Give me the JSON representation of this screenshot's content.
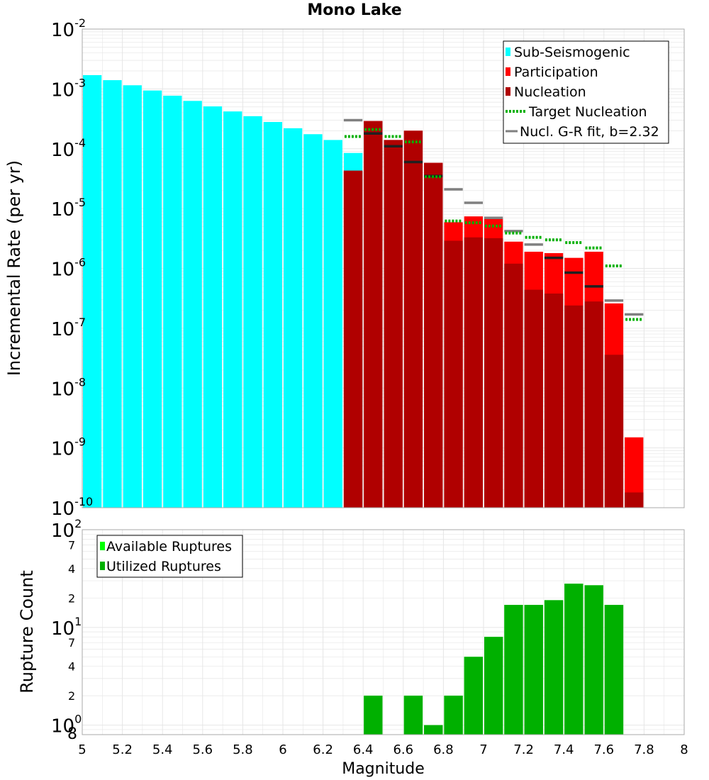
{
  "chart_title": "Mono Lake",
  "xlabel": "Magnitude",
  "colors": {
    "sub_seismogenic": "#00ffff",
    "participation": "#ff0000",
    "nucleation": "#b00000",
    "target_nucleation": "#00b000",
    "gr_fit": "#808080",
    "available": "#00ff00",
    "utilized": "#00b000",
    "grid": "#e6e6e6",
    "frame": "#aaaaaa"
  },
  "chart_data": [
    {
      "type": "bar",
      "panel": "top",
      "ylabel": "Incremental Rate (per yr)",
      "yscale": "log",
      "xlim": [
        5,
        8
      ],
      "ylim": [
        1e-10,
        0.01
      ],
      "xticks": [
        "5",
        "5.2",
        "5.4",
        "5.6",
        "5.8",
        "6",
        "6.2",
        "6.4",
        "6.6",
        "6.8",
        "7",
        "7.2",
        "7.4",
        "7.6",
        "7.8",
        "8"
      ],
      "ytick_labels": [
        {
          "base": "10",
          "exp": "-2",
          "value": 0.01
        },
        {
          "base": "10",
          "exp": "-3",
          "value": 0.001
        },
        {
          "base": "10",
          "exp": "-4",
          "value": 0.0001
        },
        {
          "base": "10",
          "exp": "-5",
          "value": 1e-05
        },
        {
          "base": "10",
          "exp": "-6",
          "value": 1e-06
        },
        {
          "base": "10",
          "exp": "-7",
          "value": 1e-07
        },
        {
          "base": "10",
          "exp": "-8",
          "value": 1e-08
        },
        {
          "base": "10",
          "exp": "-9",
          "value": 1e-09
        },
        {
          "base": "10",
          "exp": "-10",
          "value": 1e-10
        }
      ],
      "legend": {
        "placement": "top-right",
        "entries": [
          "Sub-Seismogenic",
          "Participation",
          "Nucleation",
          "Target Nucleation",
          "Nucl. G-R fit, b=2.32"
        ]
      },
      "series": [
        {
          "name": "Sub-Seismogenic",
          "x": [
            5.05,
            5.15,
            5.25,
            5.35,
            5.45,
            5.55,
            5.65,
            5.75,
            5.85,
            5.95,
            6.05,
            6.15,
            6.25,
            6.35
          ],
          "values": [
            0.0017,
            0.0014,
            0.00115,
            0.00094,
            0.00077,
            0.00063,
            0.00051,
            0.00042,
            0.00035,
            0.00028,
            0.00022,
            0.000175,
            0.00014,
            8.5e-05
          ]
        },
        {
          "name": "Participation",
          "x": [
            6.35,
            6.45,
            6.55,
            6.65,
            6.75,
            6.85,
            6.95,
            7.05,
            7.15,
            7.25,
            7.35,
            7.45,
            7.55,
            7.65,
            7.75
          ],
          "values": [
            4.3e-05,
            0.00029,
            0.00014,
            0.0002,
            5.8e-05,
            5.9e-06,
            7.4e-06,
            6.8e-06,
            2.8e-06,
            1.9e-06,
            1.8e-06,
            1.5e-06,
            1.9e-06,
            2.6e-07,
            1.5e-09
          ]
        },
        {
          "name": "Nucleation",
          "x": [
            6.35,
            6.45,
            6.55,
            6.65,
            6.75,
            6.85,
            6.95,
            7.05,
            7.15,
            7.25,
            7.35,
            7.45,
            7.55,
            7.65,
            7.75
          ],
          "values": [
            4.3e-05,
            0.00029,
            0.00014,
            0.0002,
            5.8e-05,
            2.9e-06,
            3.3e-06,
            3.2e-06,
            1.2e-06,
            4.4e-07,
            3.8e-07,
            2.4e-07,
            2.8e-07,
            3.6e-08,
            1.8e-10
          ]
        },
        {
          "name": "Target Nucleation",
          "x": [
            6.35,
            6.45,
            6.55,
            6.65,
            6.75,
            6.85,
            6.95,
            7.05,
            7.15,
            7.25,
            7.35,
            7.45,
            7.55,
            7.65,
            7.75
          ],
          "values": [
            0.00016,
            0.00021,
            0.00016,
            0.00013,
            3.4e-05,
            6.2e-06,
            5.8e-06,
            5.1e-06,
            3.9e-06,
            3.3e-06,
            3e-06,
            2.7e-06,
            2.2e-06,
            1.1e-06,
            1.4e-07
          ]
        },
        {
          "name": "Nucl. G-R fit, b=2.32",
          "x": [
            6.35,
            6.45,
            6.55,
            6.65,
            6.75,
            6.85,
            6.95,
            7.05,
            7.15,
            7.25,
            7.35,
            7.45,
            7.55,
            7.65,
            7.75
          ],
          "values": [
            0.0003,
            0.00018,
            0.00011,
            6e-05,
            3.5e-05,
            2.1e-05,
            1.25e-05,
            7e-06,
            4.2e-06,
            2.5e-06,
            1.5e-06,
            8.5e-07,
            5e-07,
            2.9e-07,
            1.7e-07
          ]
        }
      ]
    },
    {
      "type": "bar",
      "panel": "bottom",
      "ylabel": "Rupture Count",
      "yscale": "log",
      "xlim": [
        5,
        8
      ],
      "ylim": [
        0.8,
        100
      ],
      "ytick_labels": [
        {
          "base": "10",
          "exp": "2",
          "value": 100
        },
        {
          "base": "",
          "exp": "7",
          "value": 70
        },
        {
          "base": "",
          "exp": "4",
          "value": 40
        },
        {
          "base": "",
          "exp": "2",
          "value": 20
        },
        {
          "base": "10",
          "exp": "1",
          "value": 10
        },
        {
          "base": "",
          "exp": "7",
          "value": 7
        },
        {
          "base": "",
          "exp": "4",
          "value": 4
        },
        {
          "base": "",
          "exp": "2",
          "value": 2
        },
        {
          "base": "10",
          "exp": "0",
          "value": 1
        },
        {
          "base": "",
          "exp": "8",
          "value": 0.8
        }
      ],
      "legend": {
        "placement": "top-left",
        "entries": [
          "Available Ruptures",
          "Utilized Ruptures"
        ]
      },
      "series": [
        {
          "name": "Available Ruptures",
          "x": [
            6.45,
            6.65,
            6.75,
            6.85,
            6.95,
            7.05,
            7.15,
            7.25,
            7.35,
            7.45,
            7.55,
            7.65
          ],
          "values": [
            2,
            2,
            1,
            2,
            5,
            8,
            17,
            17,
            19,
            28,
            27,
            17
          ]
        },
        {
          "name": "Utilized Ruptures",
          "x": [
            6.45,
            6.65,
            6.75,
            6.85,
            6.95,
            7.05,
            7.15,
            7.25,
            7.35,
            7.45,
            7.55,
            7.65
          ],
          "values": [
            2,
            2,
            1,
            2,
            5,
            8,
            17,
            17,
            19,
            28,
            27,
            17
          ]
        }
      ]
    }
  ]
}
